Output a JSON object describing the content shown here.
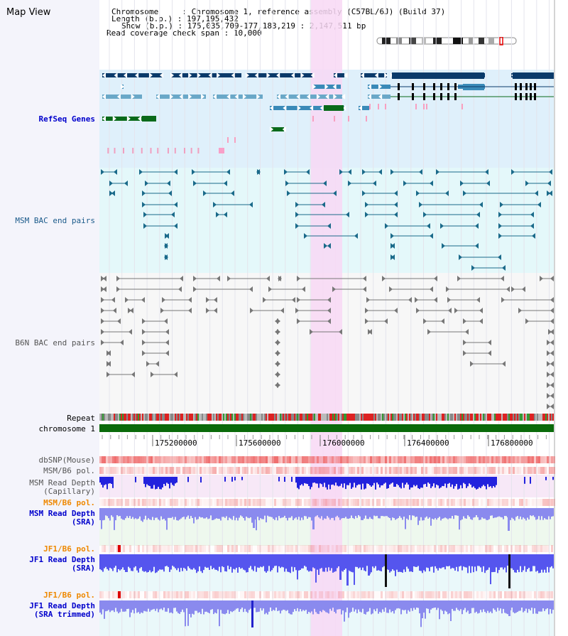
{
  "header": {
    "title": "Map View",
    "chromosome_label": "Chromosome",
    "chromosome_value": "Chromosome 1, reference assembly (C57BL/6J) (Build 37)",
    "length_label": "Length (b.p.)",
    "length_value": "197,195,432",
    "show_label": "Show (b.p.)",
    "show_value": "175,035,709-177,183,219 : 2,147,511 bp",
    "coverage_label": "Read coverage check span",
    "coverage_value": "10,000"
  },
  "tracks": {
    "refseq": "RefSeq Genes",
    "msm_bac": "MSM BAC end pairs",
    "b6n_bac": "B6N BAC end pairs",
    "repeat": "Repeat",
    "chromosome": "chromosome 1",
    "dbsnp": "dbSNP(Mouse)",
    "msm_b6_pol": "MSM/B6 pol.",
    "msm_read_depth_cap_1": "MSM Read Depth",
    "msm_read_depth_cap_2": "(Capillary)",
    "msm_b6_pol_2": "MSM/B6 pol.",
    "msm_read_depth_sra_1": "MSM Read Depth",
    "msm_read_depth_sra_2": "(SRA)",
    "jf1_b6_pol": "JF1/B6 pol.",
    "jf1_read_depth_sra_1": "JF1 Read Depth",
    "jf1_read_depth_sra_2": "(SRA)",
    "jf1_b6_pol_2": "JF1/B6 pol.",
    "jf1_read_depth_trim_1": "JF1 Read Depth",
    "jf1_read_depth_trim_2": "(SRA trimmed)"
  },
  "axis": {
    "ticks": [
      "175200000",
      "175600000",
      "176000000",
      "176400000",
      "176800000"
    ]
  },
  "colors": {
    "highlight": "#f8d8f4",
    "refseq_bg": "#dff0fb",
    "msm_bg": "#e4f8fa",
    "b6n_bg": "#f7f7f7",
    "gene_dark": "#0a3a6a",
    "gene_mid": "#3a8ab8",
    "gene_light": "#6aa8c8",
    "gene_green": "#0a6a1a",
    "msm_pair": "#1a6a8a",
    "b6n_pair": "#777777",
    "chromosome": "#0a6a0a",
    "snp": "#ee6666",
    "depth": "#4444ee",
    "label_blue": "#0000cc",
    "label_orange": "#ee8800"
  }
}
